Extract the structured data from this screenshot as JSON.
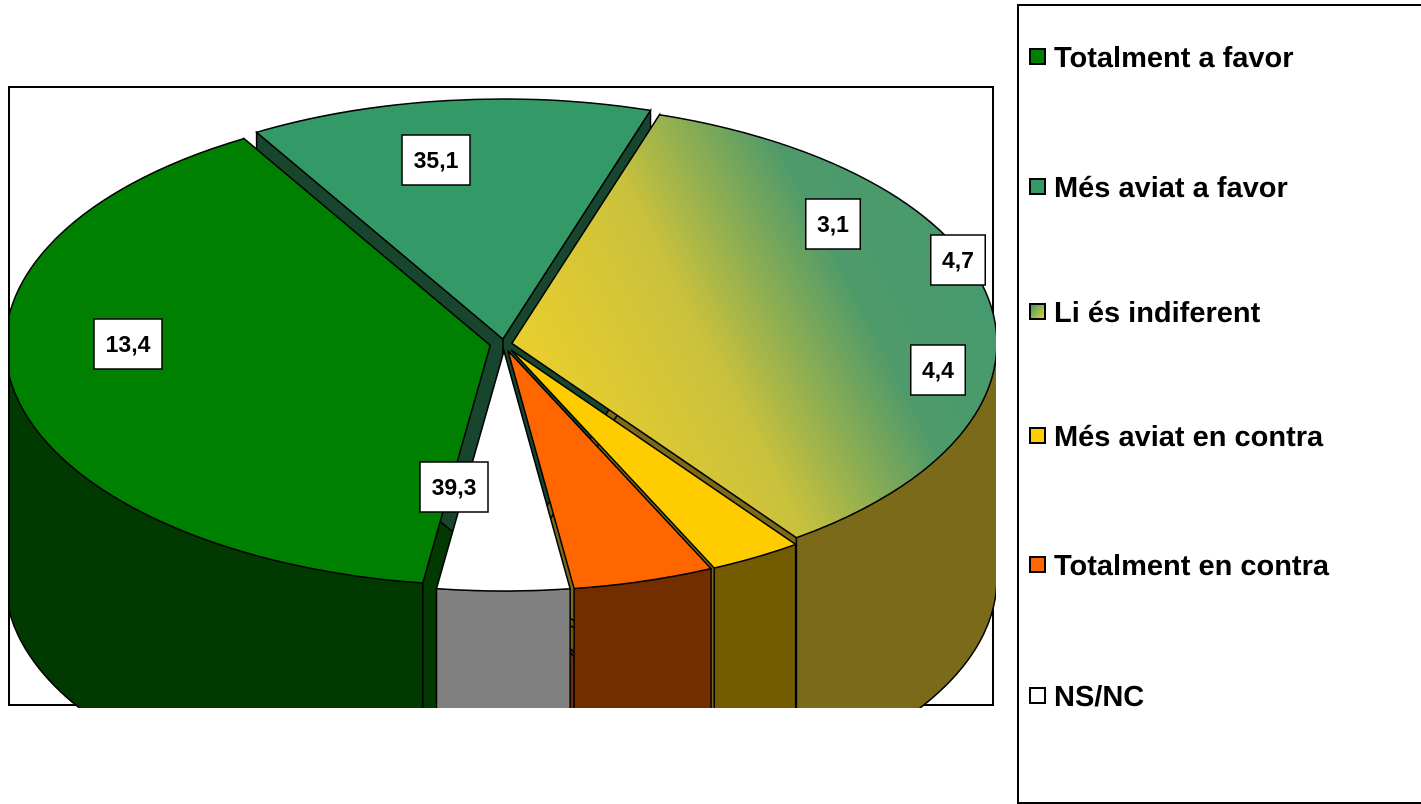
{
  "chart_data": {
    "type": "pie",
    "categories": [
      "Totalment a favor",
      "Més aviat a favor",
      "Li és indiferent",
      "Més aviat en contra",
      "Totalment en contra",
      "NS/NC"
    ],
    "values": [
      39.3,
      13.4,
      35.1,
      3.1,
      4.7,
      4.4
    ],
    "data_labels": [
      "39,3",
      "13,4",
      "35,1",
      "3,1",
      "4,7",
      "4,4"
    ],
    "colors": [
      "#008000",
      "#339966",
      "gradient-yellow-teal",
      "#ffcc00",
      "#ff6600",
      "#ffffff"
    ],
    "style": "3d-exploded",
    "legend_position": "right"
  }
}
